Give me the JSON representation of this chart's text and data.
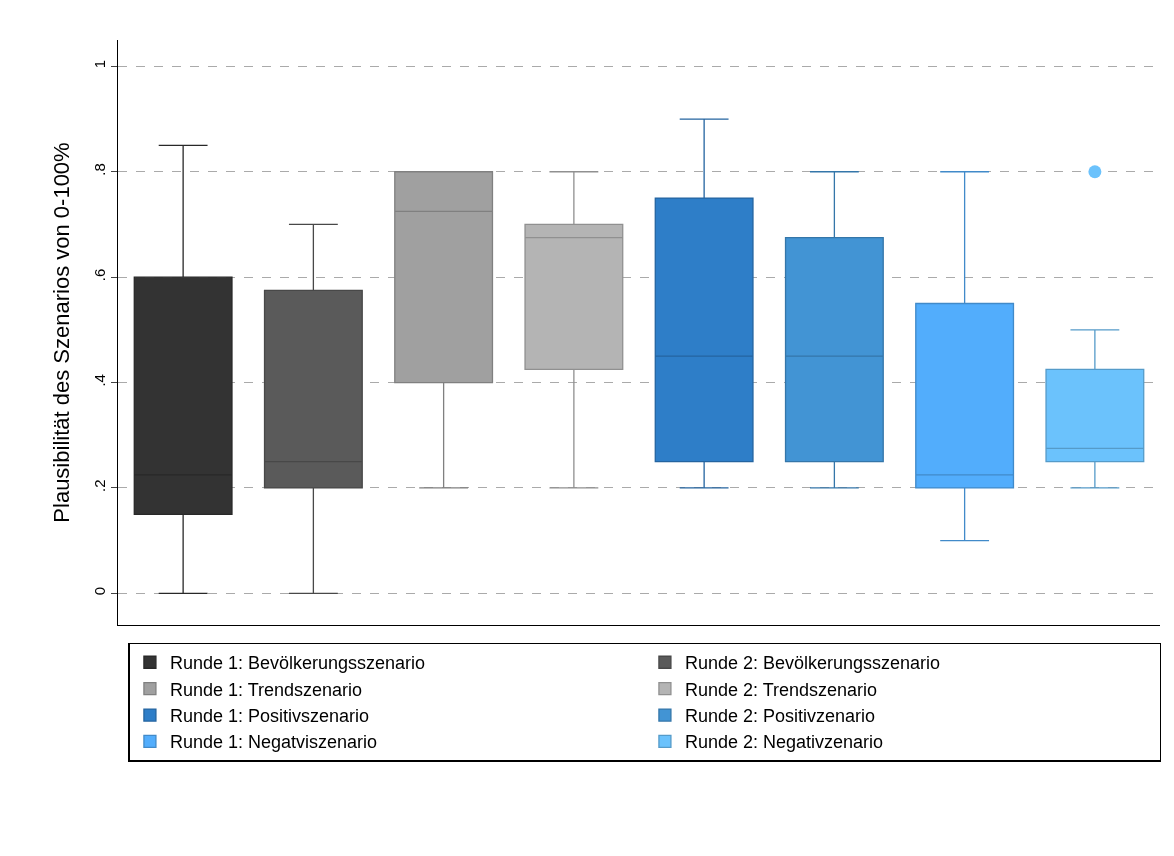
{
  "chart_data": {
    "type": "box",
    "ylabel": "Plausibilität des Szenarios von 0-100%",
    "categories": [
      null,
      null,
      null,
      null,
      null,
      null,
      null,
      null
    ],
    "ylim": [
      -0.06,
      1.05
    ],
    "yticks": [
      0,
      {
        "value": 0.2,
        "label": ".2"
      },
      {
        "value": 0.4,
        "label": ".4"
      },
      {
        "value": 0.6,
        "label": ".6"
      },
      {
        "value": 0.8,
        "label": ".8"
      },
      1
    ],
    "grid": "y",
    "legend": "bottom",
    "tick_labels": "y",
    "series": [
      {
        "name": "Runde 1: Bevölkerungsszenario",
        "color": "#333333",
        "boxes": [
          {
            "low": 0,
            "q1": 0.15,
            "median": 0.225,
            "q3": 0.6,
            "high": 0.85
          },
          null,
          null,
          null,
          null,
          null,
          null,
          null
        ]
      },
      {
        "name": "Runde 2: Bevölkerungsszenario",
        "color": "#5a5a5a",
        "boxes": [
          null,
          {
            "low": 0,
            "q1": 0.2,
            "median": 0.25,
            "q3": 0.575,
            "high": 0.7
          },
          null,
          null,
          null,
          null,
          null,
          null
        ]
      },
      {
        "name": "Runde 1: Trendszenario",
        "color": "#a0a0a0",
        "boxes": [
          null,
          null,
          {
            "low": 0.2,
            "q1": 0.4,
            "median": 0.725,
            "q3": 0.8,
            "high": 0.8
          },
          null,
          null,
          null,
          null,
          null
        ]
      },
      {
        "name": "Runde 2: Trendszenario",
        "color": "#b4b4b4",
        "boxes": [
          null,
          null,
          null,
          {
            "low": 0.2,
            "q1": 0.425,
            "median": 0.675,
            "q3": 0.7,
            "high": 0.8
          },
          null,
          null,
          null,
          null
        ]
      },
      {
        "name": "Runde 1: Positivszenario",
        "color": "#2e7ec8",
        "boxes": [
          null,
          null,
          null,
          null,
          {
            "low": 0.2,
            "q1": 0.25,
            "median": 0.45,
            "q3": 0.75,
            "high": 0.9
          },
          null,
          null,
          null
        ]
      },
      {
        "name": "Runde 2: Positivzenario",
        "color": "#4294d4",
        "boxes": [
          null,
          null,
          null,
          null,
          null,
          {
            "low": 0.2,
            "q1": 0.25,
            "median": 0.45,
            "q3": 0.675,
            "high": 0.8
          },
          null,
          null
        ]
      },
      {
        "name": "Runde 1: Negatviszenario",
        "color": "#52adfc",
        "boxes": [
          null,
          null,
          null,
          null,
          null,
          null,
          {
            "low": 0.1,
            "q1": 0.2,
            "median": 0.225,
            "q3": 0.55,
            "high": 0.8
          },
          null
        ]
      },
      {
        "name": "Runde 2: Negativzenario",
        "color": "#6bc2fc",
        "boxes": [
          null,
          null,
          null,
          null,
          null,
          null,
          null,
          {
            "low": 0.2,
            "q1": 0.25,
            "median": 0.275,
            "q3": 0.425,
            "high": 0.5,
            "outliers": [
              0.8
            ]
          }
        ]
      }
    ]
  }
}
